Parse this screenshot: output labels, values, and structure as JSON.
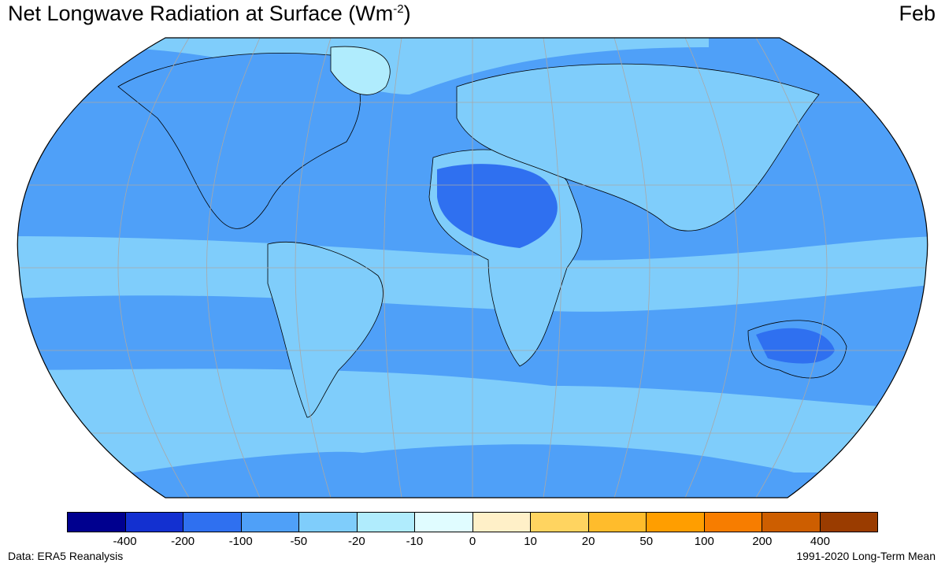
{
  "map": {
    "title": "Net Longwave Radiation at Surface (Wm",
    "title_sup": "-2",
    "title_close": ")",
    "month": "Feb",
    "source": "Data: ERA5 Reanalysis",
    "period": "1991-2020 Long-Term Mean",
    "projection": "Robinson",
    "legend": {
      "colors": [
        "#00008f",
        "#1330d0",
        "#2f70f0",
        "#4fa0f8",
        "#7fcdfb",
        "#b0ecfd",
        "#e0fcff",
        "#fff0c8",
        "#ffd460",
        "#ffbc2c",
        "#ff9e00",
        "#f77d00",
        "#cd5e00",
        "#9a3c00"
      ],
      "ticks": [
        "-400",
        "-200",
        "-100",
        "-50",
        "-20",
        "-10",
        "0",
        "10",
        "20",
        "50",
        "100",
        "200",
        "400"
      ]
    },
    "palette": {
      "ocean": "#7fcdfb",
      "band": "#4fa0f8",
      "desert": "#2f70f0",
      "ice": "#b0ecfd"
    }
  }
}
